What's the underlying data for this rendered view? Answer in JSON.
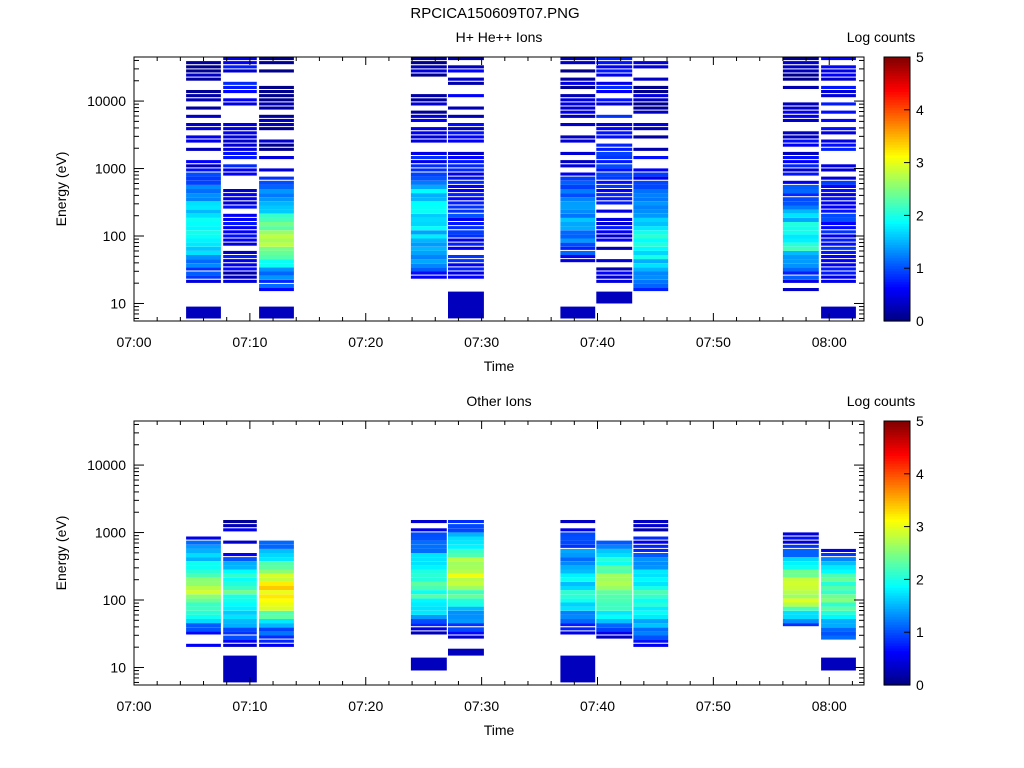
{
  "page_title": "RPCICA150609T07.PNG",
  "chart_data": [
    {
      "type": "heatmap",
      "title": "H+ He++ Ions",
      "xlabel": "Time",
      "ylabel": "Energy (eV)",
      "y_scale": "log",
      "ylim": [
        5.5,
        45000
      ],
      "xlim": [
        "07:00",
        "08:03"
      ],
      "x_ticks": [
        "07:00",
        "07:10",
        "07:20",
        "07:30",
        "07:40",
        "07:50",
        "08:00"
      ],
      "y_ticks": [
        {
          "label": "10",
          "value": 10
        },
        {
          "label": "100",
          "value": 100
        },
        {
          "label": "1000",
          "value": 1000
        },
        {
          "label": "10000",
          "value": 10000
        }
      ],
      "colorbar": {
        "label": "Log counts",
        "range": [
          0,
          5
        ],
        "ticks": [
          "0",
          "1",
          "2",
          "3",
          "4",
          "5"
        ],
        "colormap": "jet"
      },
      "grid": false,
      "columns": [
        {
          "start": "07:04.5",
          "end": "07:07.5",
          "profile": [
            [
              15,
              0.4
            ],
            [
              25,
              0.8
            ],
            [
              45,
              1.4
            ],
            [
              80,
              1.9
            ],
            [
              150,
              1.9
            ],
            [
              300,
              1.6
            ],
            [
              600,
              1.2
            ],
            [
              1000,
              0.5
            ],
            [
              45000,
              0.2
            ]
          ],
          "bottom_patch": [
            6,
            9
          ]
        },
        {
          "start": "07:07.7",
          "end": "07:10.6",
          "profile": [
            [
              18,
              0.3
            ],
            [
              40,
              0.5
            ],
            [
              90,
              0.6
            ],
            [
              200,
              0.6
            ],
            [
              600,
              0.6
            ],
            [
              45000,
              0.6
            ]
          ]
        },
        {
          "start": "07:10.8",
          "end": "07:13.8",
          "profile": [
            [
              15,
              0.7
            ],
            [
              35,
              1.6
            ],
            [
              60,
              2.5
            ],
            [
              110,
              2.7
            ],
            [
              200,
              2.0
            ],
            [
              400,
              1.3
            ],
            [
              600,
              0.8
            ],
            [
              1500,
              0.3
            ],
            [
              45000,
              0.2
            ]
          ],
          "bottom_patch": [
            6,
            9
          ]
        },
        {
          "start": "07:23.9",
          "end": "07:27.0",
          "profile": [
            [
              20,
              0.5
            ],
            [
              40,
              1.2
            ],
            [
              80,
              1.6
            ],
            [
              200,
              1.8
            ],
            [
              500,
              1.6
            ],
            [
              900,
              1.0
            ],
            [
              2000,
              0.4
            ],
            [
              45000,
              0.2
            ]
          ]
        },
        {
          "start": "07:27.1",
          "end": "07:30.2",
          "profile": [
            [
              20,
              0.5
            ],
            [
              60,
              0.7
            ],
            [
              200,
              0.8
            ],
            [
              700,
              0.7
            ],
            [
              3000,
              0.5
            ],
            [
              45000,
              0.4
            ]
          ],
          "bottom_patch": [
            6,
            15
          ]
        },
        {
          "start": "07:36.8",
          "end": "07:39.8",
          "profile": [
            [
              38,
              0.6
            ],
            [
              80,
              1.2
            ],
            [
              200,
              1.4
            ],
            [
              500,
              1.0
            ],
            [
              1000,
              0.5
            ],
            [
              45000,
              0.2
            ]
          ],
          "bottom_patch": [
            6,
            9
          ]
        },
        {
          "start": "07:39.9",
          "end": "07:43.0",
          "profile": [
            [
              20,
              0.5
            ],
            [
              60,
              0.4
            ],
            [
              200,
              0.6
            ],
            [
              600,
              0.8
            ],
            [
              2000,
              0.7
            ],
            [
              45000,
              0.6
            ]
          ],
          "bottom_patch": [
            10,
            15
          ]
        },
        {
          "start": "07:43.1",
          "end": "07:46.1",
          "profile": [
            [
              15,
              0.8
            ],
            [
              40,
              1.7
            ],
            [
              70,
              2.0
            ],
            [
              150,
              1.8
            ],
            [
              400,
              1.2
            ],
            [
              700,
              0.7
            ],
            [
              2000,
              0.4
            ],
            [
              45000,
              0.2
            ]
          ]
        },
        {
          "start": "07:56.0",
          "end": "07:59.1",
          "profile": [
            [
              15,
              0.5
            ],
            [
              40,
              1.2
            ],
            [
              70,
              2.1
            ],
            [
              150,
              1.8
            ],
            [
              300,
              1.2
            ],
            [
              800,
              0.6
            ],
            [
              45000,
              0.2
            ]
          ]
        },
        {
          "start": "07:59.3",
          "end": "08:02.3",
          "profile": [
            [
              20,
              0.5
            ],
            [
              50,
              0.7
            ],
            [
              150,
              0.8
            ],
            [
              500,
              0.7
            ],
            [
              2000,
              0.6
            ],
            [
              45000,
              0.5
            ]
          ],
          "bottom_patch": [
            6,
            9
          ]
        }
      ]
    },
    {
      "type": "heatmap",
      "title": "Other Ions",
      "xlabel": "Time",
      "ylabel": "Energy (eV)",
      "y_scale": "log",
      "ylim": [
        5.5,
        45000
      ],
      "xlim": [
        "07:00",
        "08:03"
      ],
      "x_ticks": [
        "07:00",
        "07:10",
        "07:20",
        "07:30",
        "07:40",
        "07:50",
        "08:00"
      ],
      "y_ticks": [
        {
          "label": "10",
          "value": 10
        },
        {
          "label": "100",
          "value": 100
        },
        {
          "label": "1000",
          "value": 1000
        },
        {
          "label": "10000",
          "value": 10000
        }
      ],
      "colorbar": {
        "label": "Log counts",
        "range": [
          0,
          5
        ],
        "ticks": [
          "0",
          "1",
          "2",
          "3",
          "4",
          "5"
        ],
        "colormap": "jet"
      },
      "grid": false,
      "columns": [
        {
          "start": "07:04.5",
          "end": "07:07.5",
          "profile": [
            [
              20,
              0.3
            ],
            [
              35,
              0.9
            ],
            [
              60,
              1.9
            ],
            [
              120,
              2.8
            ],
            [
              250,
              2.3
            ],
            [
              500,
              1.5
            ],
            [
              1000,
              0.4
            ]
          ]
        },
        {
          "start": "07:07.7",
          "end": "07:10.6",
          "profile": [
            [
              20,
              0.4
            ],
            [
              40,
              1.3
            ],
            [
              70,
              1.8
            ],
            [
              150,
              2.3
            ],
            [
              300,
              1.6
            ],
            [
              500,
              0.7
            ],
            [
              1500,
              0.2
            ]
          ],
          "bottom_patch": [
            6,
            15
          ]
        },
        {
          "start": "07:10.8",
          "end": "07:13.8",
          "profile": [
            [
              20,
              0.4
            ],
            [
              40,
              1.3
            ],
            [
              80,
              3.0
            ],
            [
              150,
              3.2
            ],
            [
              300,
              2.5
            ],
            [
              600,
              1.3
            ],
            [
              900,
              0.4
            ]
          ]
        },
        {
          "start": "07:23.9",
          "end": "07:27.0",
          "profile": [
            [
              30,
              0.4
            ],
            [
              50,
              1.2
            ],
            [
              100,
              2.1
            ],
            [
              200,
              2.2
            ],
            [
              400,
              1.7
            ],
            [
              900,
              0.8
            ],
            [
              1500,
              0.3
            ]
          ],
          "bottom_patch": [
            9,
            14
          ]
        },
        {
          "start": "07:27.1",
          "end": "07:30.2",
          "profile": [
            [
              25,
              0.3
            ],
            [
              50,
              1.2
            ],
            [
              100,
              2.1
            ],
            [
              200,
              2.9
            ],
            [
              400,
              2.6
            ],
            [
              800,
              1.7
            ],
            [
              1500,
              0.6
            ]
          ],
          "bottom_patch": [
            15,
            19
          ]
        },
        {
          "start": "07:36.8",
          "end": "07:39.8",
          "profile": [
            [
              30,
              0.3
            ],
            [
              60,
              1.2
            ],
            [
              100,
              2.0
            ],
            [
              200,
              1.7
            ],
            [
              450,
              1.3
            ],
            [
              1000,
              0.8
            ],
            [
              1500,
              0.5
            ]
          ],
          "bottom_patch": [
            6,
            15
          ]
        },
        {
          "start": "07:39.9",
          "end": "07:43.0",
          "profile": [
            [
              25,
              0.3
            ],
            [
              50,
              1.6
            ],
            [
              100,
              2.4
            ],
            [
              200,
              2.8
            ],
            [
              400,
              2.0
            ],
            [
              800,
              0.7
            ]
          ]
        },
        {
          "start": "07:43.1",
          "end": "07:46.1",
          "profile": [
            [
              20,
              0.5
            ],
            [
              40,
              1.4
            ],
            [
              80,
              2.1
            ],
            [
              150,
              2.0
            ],
            [
              400,
              1.3
            ],
            [
              800,
              0.6
            ],
            [
              1500,
              0.3
            ]
          ]
        },
        {
          "start": "07:56.0",
          "end": "07:59.1",
          "profile": [
            [
              38,
              0.4
            ],
            [
              60,
              1.8
            ],
            [
              100,
              2.9
            ],
            [
              200,
              2.7
            ],
            [
              400,
              1.5
            ],
            [
              700,
              0.6
            ],
            [
              1000,
              0.3
            ]
          ]
        },
        {
          "start": "07:59.3",
          "end": "08:02.3",
          "profile": [
            [
              25,
              0.9
            ],
            [
              50,
              1.7
            ],
            [
              100,
              2.4
            ],
            [
              200,
              2.2
            ],
            [
              400,
              1.3
            ],
            [
              600,
              0.4
            ]
          ],
          "bottom_patch": [
            9,
            14
          ]
        }
      ]
    }
  ]
}
